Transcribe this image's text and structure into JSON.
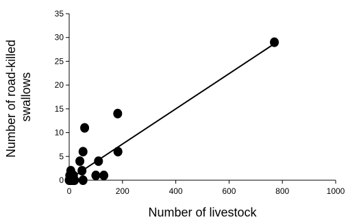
{
  "chart_data": {
    "type": "scatter",
    "title": "",
    "xlabel": "Number of livestock",
    "ylabel": [
      "Number of road-killed",
      "swallows"
    ],
    "xlim": [
      0,
      1000
    ],
    "ylim": [
      0,
      35
    ],
    "x_ticks": [
      0,
      200,
      400,
      600,
      800,
      1000
    ],
    "y_ticks": [
      0,
      5,
      10,
      15,
      20,
      25,
      30,
      35
    ],
    "grid": false,
    "legend": "none",
    "points": [
      {
        "x": 0,
        "y": 0
      },
      {
        "x": 2,
        "y": 1
      },
      {
        "x": 4,
        "y": 0
      },
      {
        "x": 6,
        "y": 2
      },
      {
        "x": 8,
        "y": 0
      },
      {
        "x": 10,
        "y": 1
      },
      {
        "x": 12,
        "y": 0
      },
      {
        "x": 14,
        "y": 0
      },
      {
        "x": 16,
        "y": 1
      },
      {
        "x": 18,
        "y": 0
      },
      {
        "x": 20,
        "y": 0
      },
      {
        "x": 40,
        "y": 4
      },
      {
        "x": 48,
        "y": 2
      },
      {
        "x": 52,
        "y": 6
      },
      {
        "x": 58,
        "y": 11
      },
      {
        "x": 52,
        "y": 0
      },
      {
        "x": 100,
        "y": 1
      },
      {
        "x": 110,
        "y": 4
      },
      {
        "x": 130,
        "y": 1
      },
      {
        "x": 182,
        "y": 14
      },
      {
        "x": 183,
        "y": 6
      },
      {
        "x": 770,
        "y": 29
      }
    ],
    "trendline": {
      "x": [
        0,
        765
      ],
      "y": [
        0.2,
        28.5
      ]
    },
    "colors": {
      "marker": "#000000",
      "line": "#000000"
    }
  }
}
